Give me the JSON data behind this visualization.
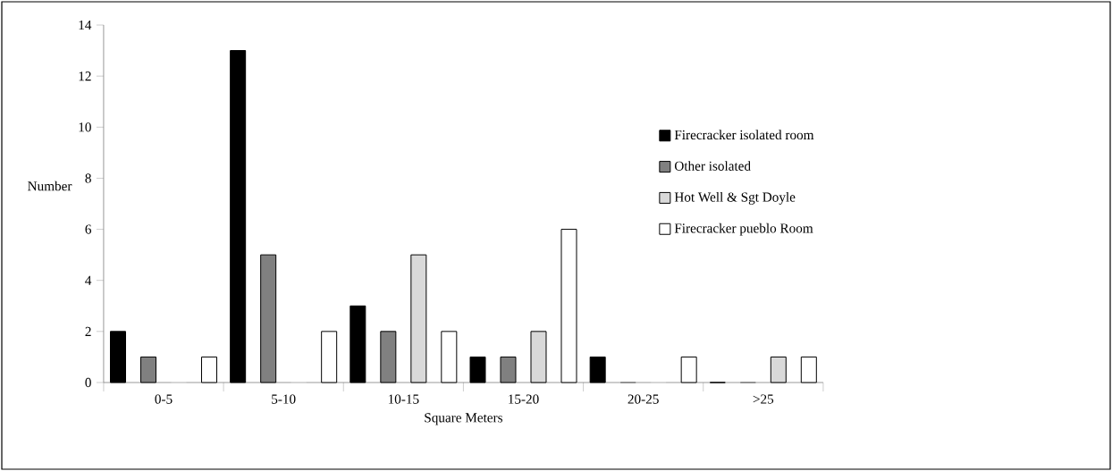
{
  "chart_data": {
    "type": "bar",
    "xlabel": "Square Meters",
    "ylabel": "Number",
    "categories": [
      "0-5",
      "5-10",
      "10-15",
      "15-20",
      "20-25",
      ">25"
    ],
    "series": [
      {
        "name": "Firecracker isolated room",
        "color": "#000000",
        "values": [
          2,
          13,
          3,
          1,
          1,
          0
        ]
      },
      {
        "name": "Other isolated",
        "color": "#808080",
        "values": [
          1,
          5,
          2,
          1,
          0,
          0
        ]
      },
      {
        "name": "Hot Well & Sgt Doyle",
        "color": "#d9d9d9",
        "values": [
          0,
          0,
          5,
          2,
          0,
          1
        ]
      },
      {
        "name": "Firecracker pueblo Room",
        "color": "#ffffff",
        "values": [
          1,
          2,
          2,
          6,
          1,
          1
        ]
      }
    ],
    "ylim": [
      0,
      14
    ],
    "yticks": [
      0,
      2,
      4,
      6,
      8,
      10,
      12,
      14
    ],
    "legend": "right"
  }
}
